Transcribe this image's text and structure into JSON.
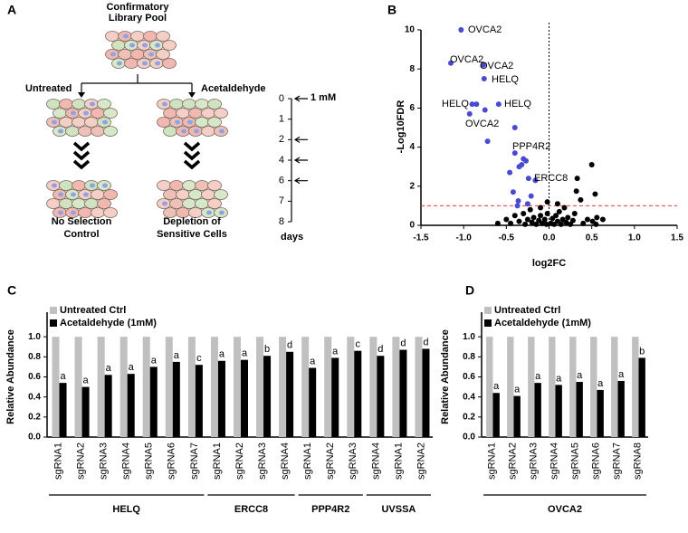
{
  "panel_labels": [
    "A",
    "B",
    "C",
    "D"
  ],
  "diagram": {
    "pool_label": [
      "Confirmatory",
      "Library Pool"
    ],
    "left_label": "Untreated",
    "right_label": "Acetaldehyde",
    "left_result": [
      "No Selection",
      "Control"
    ],
    "right_result": [
      "Depletion of",
      "Sensitive Cells"
    ],
    "timeline": {
      "days": [
        0,
        1,
        2,
        4,
        6,
        7,
        8
      ],
      "treated": [
        true,
        false,
        true,
        true,
        true,
        false,
        false
      ],
      "dose": "1 mM",
      "unit": "days"
    }
  },
  "chart_data": [
    {
      "type": "scatter",
      "xlabel": "log2FC",
      "ylabel": "-Log10FDR",
      "xlim": [
        -1.5,
        1.5
      ],
      "xticks": [
        -1.5,
        {
          "value": -1,
          "label": "-1.0"
        },
        -0.5,
        {
          "value": 0,
          "label": "0.0"
        },
        0.5,
        {
          "value": 1,
          "label": "1.0"
        },
        1.5
      ],
      "ylim": [
        0,
        10
      ],
      "yticks": [
        0,
        2,
        4,
        6,
        8,
        10
      ],
      "series": [
        {
          "color": "#4a4ad0",
          "x": [
            -1.03,
            -1.15,
            -0.77,
            -0.76,
            -0.9,
            -0.85,
            -0.59,
            -0.93,
            -0.75,
            -0.4,
            -0.72,
            -0.4,
            -0.3,
            -0.27,
            -0.32,
            -0.35,
            -0.46,
            -0.24,
            -0.16,
            -0.42,
            -0.21,
            -0.36,
            -0.37,
            -0.25
          ],
          "values": [
            10.0,
            8.3,
            8.2,
            7.5,
            6.2,
            6.2,
            6.2,
            5.7,
            5.9,
            5.0,
            4.3,
            3.7,
            3.4,
            3.3,
            3.1,
            3.0,
            2.7,
            2.4,
            2.3,
            1.7,
            1.5,
            1.25,
            1.0,
            1.1
          ]
        },
        {
          "color": "#000000",
          "x": [
            -0.5,
            -0.45,
            -0.4,
            -0.35,
            -0.3,
            -0.28,
            -0.25,
            -0.22,
            -0.2,
            -0.18,
            -0.15,
            -0.12,
            -0.1,
            -0.08,
            -0.05,
            -0.03,
            -0.02,
            0.02,
            0.04,
            0.06,
            0.08,
            0.1,
            0.12,
            0.14,
            0.16,
            0.18,
            0.2,
            0.22,
            0.25,
            0.28,
            0.3,
            0.33,
            0.32,
            0.37,
            0.4,
            0.45,
            0.5,
            0.54,
            0.56,
            0.63,
            0.51,
            -0.6,
            -0.02,
            0.1,
            0.55,
            -0.1
          ],
          "values": [
            0.3,
            0.1,
            0.5,
            0.2,
            0.6,
            0.05,
            0.3,
            0.8,
            0.15,
            0.4,
            0.05,
            0.25,
            0.5,
            0.1,
            0.3,
            0.05,
            0.6,
            0.1,
            0.35,
            0.05,
            0.5,
            0.2,
            0.7,
            0.05,
            0.3,
            0.9,
            0.15,
            0.4,
            0.05,
            0.25,
            0.6,
            2.4,
            1.75,
            1.3,
            0.1,
            0.3,
            3.1,
            1.6,
            0.4,
            0.3,
            0.2,
            0.1,
            1.2,
            1.1,
            0.05,
            0.9
          ]
        }
      ],
      "reference_lines": [
        {
          "axis": "y",
          "value": 1,
          "color": "#e04040",
          "style": "dashed"
        },
        {
          "axis": "x",
          "value": 0,
          "color": "#000000",
          "style": "dotted"
        }
      ],
      "annotations": [
        "OVCA2",
        "OVCA2",
        "OVCA2",
        "HELQ",
        "HELQ",
        "HELQ",
        "OVCA2",
        "PPP4R2",
        "ERCC8"
      ]
    },
    {
      "type": "bar",
      "ylabel": "Relative Abundance",
      "legend": "top-left",
      "ylim": [
        0,
        1.2
      ],
      "yticks": [
        {
          "value": 0,
          "label": "0.0"
        },
        0.2,
        0.4,
        0.6,
        0.8,
        {
          "value": 1,
          "label": "1.0"
        }
      ],
      "groups": [
        {
          "label": "HELQ",
          "categories": [
            "sgRNA1",
            "sgRNA2",
            "sgRNA3",
            "sgRNA4",
            "sgRNA5",
            "sgRNA6",
            "sgRNA7"
          ]
        },
        {
          "label": "ERCC8",
          "categories": [
            "sgRNA1",
            "sgRNA2",
            "sgRNA3",
            "sgRNA4"
          ]
        },
        {
          "label": "PPP4R2",
          "categories": [
            "sgRNA1",
            "sgRNA2",
            "sgRNA3"
          ]
        },
        {
          "label": "UVSSA",
          "categories": [
            "sgRNA4",
            "sgRNA1",
            "sgRNA2"
          ]
        }
      ],
      "series": [
        {
          "name": "Untreated Ctrl",
          "color": "#c0c0c0",
          "values": [
            1.0,
            1.0,
            1.0,
            1.0,
            1.0,
            1.0,
            1.0,
            1.0,
            1.0,
            1.0,
            1.0,
            1.0,
            1.0,
            1.0,
            1.0,
            1.0,
            1.0
          ]
        },
        {
          "name": "Acetaldehyde (1mM)",
          "color": "#000000",
          "values": [
            0.54,
            0.5,
            0.62,
            0.63,
            0.7,
            0.75,
            0.72,
            0.76,
            0.77,
            0.81,
            0.85,
            0.69,
            0.79,
            0.86,
            0.81,
            0.87,
            0.88
          ],
          "letters": [
            "a",
            "a",
            "a",
            "a",
            "a",
            "a",
            "c",
            "a",
            "a",
            "b",
            "d",
            "a",
            "a",
            "c",
            "d",
            "d",
            "d"
          ]
        }
      ]
    },
    {
      "type": "bar",
      "ylabel": "Relative Abundance",
      "legend": "top-left",
      "ylim": [
        0,
        1.2
      ],
      "yticks": [
        {
          "value": 0,
          "label": "0.0"
        },
        0.2,
        0.4,
        0.6,
        0.8,
        {
          "value": 1,
          "label": "1.0"
        }
      ],
      "groups": [
        {
          "label": "OVCA2",
          "categories": [
            "sgRNA1",
            "sgRNA2",
            "sgRNA3",
            "sgRNA4",
            "sgRNA5",
            "sgRNA6",
            "sgRNA7",
            "sgRNA8"
          ]
        }
      ],
      "series": [
        {
          "name": "Untreated Ctrl",
          "color": "#c0c0c0",
          "values": [
            1.0,
            1.0,
            1.0,
            1.0,
            1.0,
            1.0,
            1.0,
            1.0
          ]
        },
        {
          "name": "Acetaldehyde (1mM)",
          "color": "#000000",
          "values": [
            0.44,
            0.41,
            0.54,
            0.52,
            0.55,
            0.47,
            0.56,
            0.79
          ],
          "letters": [
            "a",
            "a",
            "a",
            "a",
            "a",
            "a",
            "a",
            "b"
          ]
        }
      ]
    }
  ]
}
